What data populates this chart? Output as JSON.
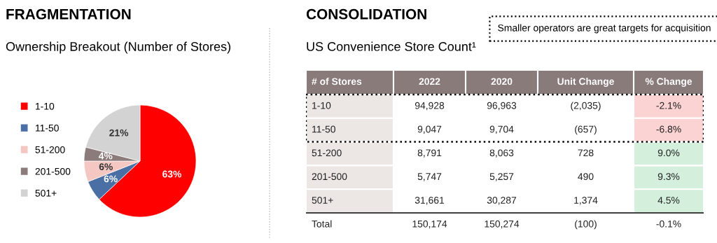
{
  "chart_data": [
    {
      "type": "pie",
      "title": "FRAGMENTATION",
      "subtitle": "Ownership Breakout (Number of Stores)",
      "categories": [
        "1-10",
        "11-50",
        "51-200",
        "201-500",
        "501+"
      ],
      "values": [
        63,
        6,
        6,
        4,
        21
      ],
      "colors": [
        "#ff0000",
        "#4a6fa5",
        "#f4c7c3",
        "#8c7b7b",
        "#d3d3d3"
      ],
      "value_labels": [
        "63%",
        "6%",
        "6%",
        "4%",
        "21%"
      ],
      "legend": "left"
    },
    {
      "type": "other",
      "title": "CONSOLIDATION",
      "subtitle": "US Convenience Store Count¹",
      "annotations": [
        "Smaller operators are great targets for acquisition"
      ],
      "categories": [
        "# of Stores",
        "2022",
        "2020",
        "Unit Change",
        "% Change"
      ],
      "cell_labels": [
        [
          "1-10",
          "94,928",
          "96,963",
          "(2,035)",
          "-2.1%"
        ],
        [
          "11-50",
          "9,047",
          "9,704",
          "(657)",
          "-6.8%"
        ],
        [
          "51-200",
          "8,791",
          "8,063",
          "728",
          "9.0%"
        ],
        [
          "201-500",
          "5,747",
          "5,257",
          "490",
          "9.3%"
        ],
        [
          "501+",
          "31,661",
          "30,287",
          "1,374",
          "4.5%"
        ],
        [
          "Total",
          "150,174",
          "150,274",
          "(100)",
          "-0.1%"
        ]
      ]
    }
  ]
}
